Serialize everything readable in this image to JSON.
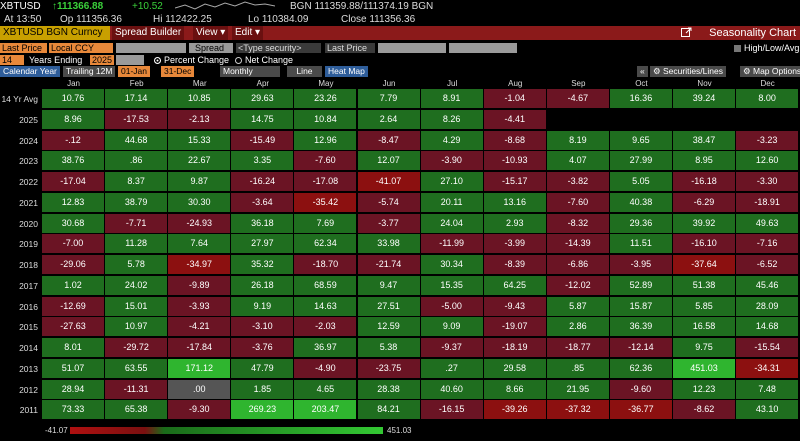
{
  "quote": {
    "ticker": "XBTUSD",
    "last": "↑111366.88",
    "change": "+10.52",
    "bid_ask": "BGN 111359.88/111374.19 BGN",
    "at": "At 13:50",
    "op": "Op 111356.36",
    "hi": "Hi 112422.25",
    "lo": "Lo 110384.09",
    "close": "Close 111356.36"
  },
  "menubar": {
    "security": "XBTUSD BGN Curncy",
    "spread_builder": "Spread Builder",
    "view": "View ▾",
    "edit": "Edit ▾",
    "title": "Seasonality Chart"
  },
  "params": {
    "last_price": "Last Price",
    "currency": "Local CCY",
    "spread": "Spread",
    "type_security": "<Type security>",
    "last_price2": "Last Price",
    "high_low": "High/Low/Avg",
    "years": "14",
    "years_ending_label": "Years Ending",
    "year_end": "2025",
    "percent_change": "Percent Change",
    "net_change": "Net Change"
  },
  "toolbar": {
    "calendar_year": "Calendar Year",
    "trailing": "Trailing 12M",
    "from": "01-Jan",
    "to": "31-Dec",
    "period": "Monthly",
    "line": "Line",
    "heat_map": "Heat Map",
    "securities_lines": "Securities/Lines",
    "map_options": "Map Options",
    "nav_left": "«"
  },
  "table": {
    "months": [
      "Jan",
      "Feb",
      "Mar",
      "Apr",
      "May",
      "Jun",
      "Jul",
      "Aug",
      "Sep",
      "Oct",
      "Nov",
      "Dec"
    ],
    "rows": [
      {
        "label": "14 Yr Avg",
        "values": [
          "10.76",
          "17.14",
          "10.85",
          "29.63",
          "23.26",
          "7.79",
          "8.91",
          "-1.04",
          "-4.67",
          "16.36",
          "39.24",
          "8.00"
        ]
      },
      {
        "label": "2025",
        "values": [
          "8.96",
          "-17.53",
          "-2.13",
          "14.75",
          "10.84",
          "2.64",
          "8.26",
          "-4.41",
          "",
          "",
          "",
          ""
        ]
      },
      {
        "label": "2024",
        "values": [
          "-.12",
          "44.68",
          "15.33",
          "-15.49",
          "12.96",
          "-8.47",
          "4.29",
          "-8.68",
          "8.19",
          "9.65",
          "38.47",
          "-3.23"
        ]
      },
      {
        "label": "2023",
        "values": [
          "38.76",
          ".86",
          "22.67",
          "3.35",
          "-7.60",
          "12.07",
          "-3.90",
          "-10.93",
          "4.07",
          "27.99",
          "8.95",
          "12.60"
        ]
      },
      {
        "label": "2022",
        "values": [
          "-17.04",
          "8.37",
          "9.87",
          "-16.24",
          "-17.08",
          "-41.07",
          "27.10",
          "-15.17",
          "-3.82",
          "5.05",
          "-16.18",
          "-3.30"
        ]
      },
      {
        "label": "2021",
        "values": [
          "12.83",
          "38.79",
          "30.30",
          "-3.64",
          "-35.42",
          "-5.74",
          "20.11",
          "13.16",
          "-7.60",
          "40.38",
          "-6.29",
          "-18.91"
        ]
      },
      {
        "label": "2020",
        "values": [
          "30.68",
          "-7.71",
          "-24.93",
          "36.18",
          "7.69",
          "-3.77",
          "24.04",
          "2.93",
          "-8.32",
          "29.36",
          "39.92",
          "49.63"
        ]
      },
      {
        "label": "2019",
        "values": [
          "-7.00",
          "11.28",
          "7.64",
          "27.97",
          "62.34",
          "33.98",
          "-11.99",
          "-3.99",
          "-14.39",
          "11.51",
          "-16.10",
          "-7.16"
        ]
      },
      {
        "label": "2018",
        "values": [
          "-29.06",
          "5.78",
          "-34.97",
          "35.32",
          "-18.70",
          "-21.74",
          "30.34",
          "-8.39",
          "-6.86",
          "-3.95",
          "-37.64",
          "-6.52"
        ]
      },
      {
        "label": "2017",
        "values": [
          "1.02",
          "24.02",
          "-9.89",
          "26.18",
          "68.59",
          "9.47",
          "15.35",
          "64.25",
          "-12.02",
          "52.89",
          "51.38",
          "45.46"
        ]
      },
      {
        "label": "2016",
        "values": [
          "-12.69",
          "15.01",
          "-3.93",
          "9.19",
          "14.63",
          "27.51",
          "-5.00",
          "-9.43",
          "5.87",
          "15.87",
          "5.85",
          "28.09"
        ]
      },
      {
        "label": "2015",
        "values": [
          "-27.63",
          "10.97",
          "-4.21",
          "-3.10",
          "-2.03",
          "12.59",
          "9.09",
          "-19.07",
          "2.86",
          "36.39",
          "16.58",
          "14.68"
        ]
      },
      {
        "label": "2014",
        "values": [
          "8.01",
          "-29.72",
          "-17.84",
          "-3.76",
          "36.97",
          "5.38",
          "-9.37",
          "-18.19",
          "-18.77",
          "-12.14",
          "9.75",
          "-15.54"
        ]
      },
      {
        "label": "2013",
        "values": [
          "51.07",
          "63.55",
          "171.12",
          "47.79",
          "-4.90",
          "-23.75",
          ".27",
          "29.58",
          ".85",
          "62.36",
          "451.03",
          "-34.31"
        ]
      },
      {
        "label": "2012",
        "values": [
          "28.94",
          "-11.31",
          ".00",
          "1.85",
          "4.65",
          "28.38",
          "40.60",
          "8.66",
          "21.95",
          "-9.60",
          "12.23",
          "7.48"
        ]
      },
      {
        "label": "2011",
        "values": [
          "73.33",
          "65.38",
          "-9.30",
          "269.23",
          "203.47",
          "84.21",
          "-16.15",
          "-39.26",
          "-37.32",
          "-36.77",
          "-8.62",
          "43.10"
        ]
      }
    ]
  },
  "legend": {
    "min": "-41.07",
    "max": "451.03"
  },
  "colors": {
    "pos": "#1f6e1f",
    "neg": "#6b1424",
    "pos_strong": "#2fb52f",
    "neg_strong": "#8c1010",
    "zero": "#555555",
    "empty": "#000000"
  }
}
